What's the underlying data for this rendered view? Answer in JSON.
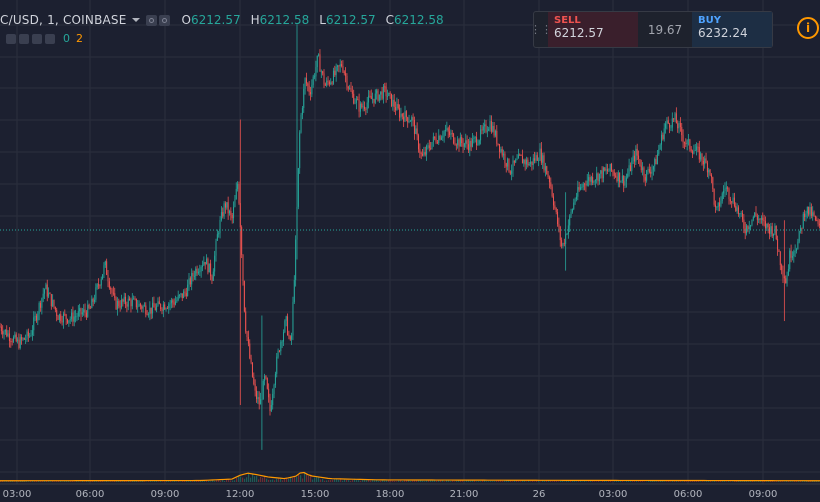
{
  "header": {
    "symbol": "C/USD, 1, COINBASE",
    "ohlc": [
      {
        "key": "O",
        "value": "6212.57"
      },
      {
        "key": "H",
        "value": "6212.58"
      },
      {
        "key": "L",
        "value": "6212.57"
      },
      {
        "key": "C",
        "value": "6212.58"
      }
    ],
    "volume_a": "0",
    "volume_b": "2"
  },
  "trade": {
    "sell_label": "SELL",
    "sell_price": "6212.57",
    "spread": "19.67",
    "buy_label": "BUY",
    "buy_price": "6232.24"
  },
  "colors": {
    "background": "#1c2030",
    "grid": "#2b2f3e",
    "up": "#26a69a",
    "down": "#ef5350",
    "volume": "#ff9800",
    "price_line": "#26a69a"
  },
  "chart_data": {
    "type": "candlestick",
    "x_tick_labels": [
      "03:00",
      "06:00",
      "09:00",
      "12:00",
      "15:00",
      "18:00",
      "21:00",
      "26",
      "03:00",
      "06:00",
      "09:00"
    ],
    "price_line": 6212.57,
    "grid": true,
    "close_path": [
      [
        0,
        6040
      ],
      [
        18,
        6010
      ],
      [
        30,
        6025
      ],
      [
        45,
        6110
      ],
      [
        58,
        6060
      ],
      [
        70,
        6055
      ],
      [
        90,
        6070
      ],
      [
        105,
        6150
      ],
      [
        115,
        6080
      ],
      [
        130,
        6085
      ],
      [
        150,
        6070
      ],
      [
        165,
        6080
      ],
      [
        175,
        6085
      ],
      [
        185,
        6100
      ],
      [
        195,
        6140
      ],
      [
        205,
        6160
      ],
      [
        212,
        6130
      ],
      [
        218,
        6210
      ],
      [
        225,
        6260
      ],
      [
        232,
        6230
      ],
      [
        238,
        6300
      ],
      [
        241,
        6200
      ],
      [
        245,
        6050
      ],
      [
        250,
        5980
      ],
      [
        255,
        5920
      ],
      [
        260,
        5900
      ],
      [
        265,
        5950
      ],
      [
        270,
        5890
      ],
      [
        275,
        5960
      ],
      [
        280,
        6010
      ],
      [
        286,
        6050
      ],
      [
        291,
        6000
      ],
      [
        296,
        6200
      ],
      [
        300,
        6400
      ],
      [
        305,
        6480
      ],
      [
        310,
        6460
      ],
      [
        318,
        6520
      ],
      [
        325,
        6470
      ],
      [
        335,
        6490
      ],
      [
        342,
        6510
      ],
      [
        350,
        6460
      ],
      [
        360,
        6430
      ],
      [
        370,
        6445
      ],
      [
        385,
        6460
      ],
      [
        400,
        6420
      ],
      [
        412,
        6410
      ],
      [
        422,
        6340
      ],
      [
        432,
        6370
      ],
      [
        445,
        6390
      ],
      [
        458,
        6370
      ],
      [
        470,
        6365
      ],
      [
        480,
        6380
      ],
      [
        490,
        6405
      ],
      [
        500,
        6360
      ],
      [
        510,
        6320
      ],
      [
        520,
        6340
      ],
      [
        530,
        6330
      ],
      [
        540,
        6350
      ],
      [
        550,
        6300
      ],
      [
        556,
        6240
      ],
      [
        562,
        6180
      ],
      [
        568,
        6220
      ],
      [
        575,
        6270
      ],
      [
        585,
        6300
      ],
      [
        598,
        6310
      ],
      [
        610,
        6320
      ],
      [
        625,
        6300
      ],
      [
        636,
        6350
      ],
      [
        645,
        6310
      ],
      [
        655,
        6330
      ],
      [
        665,
        6400
      ],
      [
        675,
        6410
      ],
      [
        685,
        6370
      ],
      [
        698,
        6350
      ],
      [
        710,
        6320
      ],
      [
        716,
        6240
      ],
      [
        725,
        6290
      ],
      [
        735,
        6260
      ],
      [
        745,
        6215
      ],
      [
        755,
        6240
      ],
      [
        765,
        6220
      ],
      [
        775,
        6210
      ],
      [
        780,
        6160
      ],
      [
        786,
        6120
      ],
      [
        790,
        6170
      ],
      [
        798,
        6190
      ],
      [
        805,
        6250
      ],
      [
        812,
        6240
      ],
      [
        820,
        6212
      ]
    ],
    "volume_profile": [
      [
        0,
        0.6
      ],
      [
        200,
        0.7
      ],
      [
        232,
        1.4
      ],
      [
        240,
        3.2
      ],
      [
        248,
        4.2
      ],
      [
        258,
        3.4
      ],
      [
        268,
        2.4
      ],
      [
        285,
        1.6
      ],
      [
        296,
        2.8
      ],
      [
        302,
        5.0
      ],
      [
        310,
        3.0
      ],
      [
        330,
        1.6
      ],
      [
        380,
        1.0
      ],
      [
        550,
        0.8
      ],
      [
        700,
        0.7
      ],
      [
        820,
        0.6
      ]
    ]
  }
}
